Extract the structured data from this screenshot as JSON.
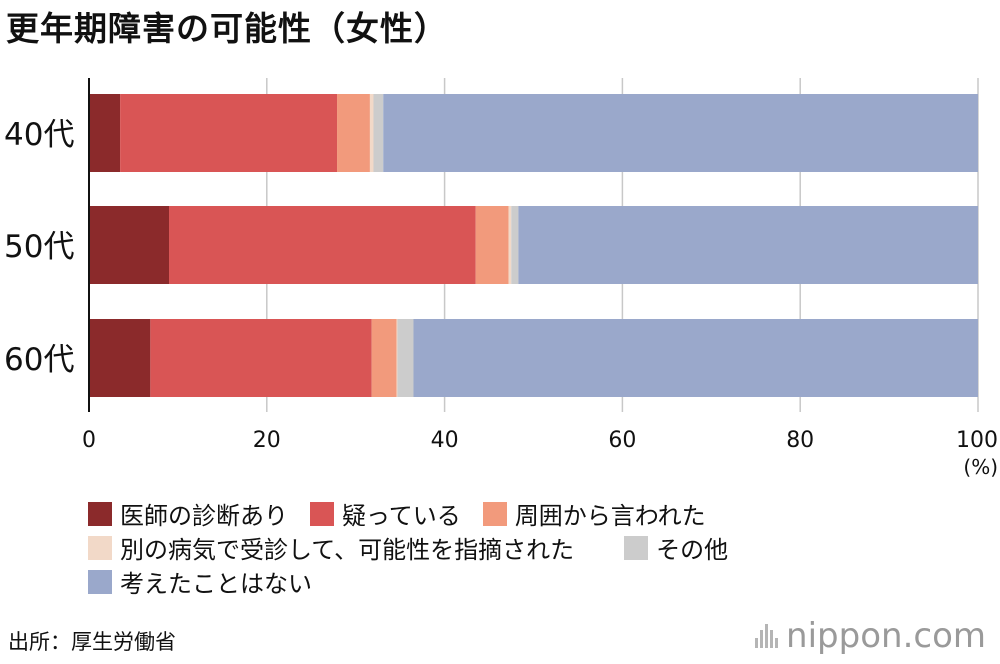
{
  "title": "更年期障害の可能性（女性）",
  "colors": {
    "doctor": "#8b2a2b",
    "suspect": "#d95555",
    "told": "#f29a7c",
    "other_disease": "#f2d9c8",
    "other": "#cccccc",
    "never": "#9aa8cb",
    "grid": "#c8c8c8",
    "axis": "#111111"
  },
  "chart_data": {
    "type": "bar",
    "orientation": "horizontal",
    "stacked": true,
    "categories": [
      "40代",
      "50代",
      "60代"
    ],
    "series": [
      {
        "name": "医師の診断あり",
        "values": [
          3.5,
          9.0,
          6.9
        ]
      },
      {
        "name": "疑っている",
        "values": [
          24.4,
          34.5,
          24.9
        ]
      },
      {
        "name": "周囲から言われた",
        "values": [
          3.7,
          3.7,
          2.8
        ]
      },
      {
        "name": "別の病気で受診して、可能性を指摘された",
        "values": [
          0.4,
          0.3,
          0.1
        ]
      },
      {
        "name": "その他",
        "values": [
          1.1,
          0.8,
          1.8
        ]
      },
      {
        "name": "考えたことはない",
        "values": [
          66.9,
          51.7,
          63.5
        ]
      }
    ],
    "xlim": [
      0,
      100
    ],
    "xticks": [
      0,
      20,
      40,
      60,
      80,
      100
    ],
    "unit": "(%)",
    "grid": true
  },
  "legend": {
    "rows": [
      [
        {
          "label": "医師の診断あり",
          "color": "#8b2a2b"
        },
        {
          "label": "疑っている",
          "color": "#d95555"
        },
        {
          "label": "周囲から言われた",
          "color": "#f29a7c"
        }
      ],
      [
        {
          "label": "別の病気で受診して、可能性を指摘された",
          "color": "#f2d9c8"
        },
        {
          "label": "その他",
          "color": "#cccccc"
        }
      ],
      [
        {
          "label": "考えたことはない",
          "color": "#9aa8cb"
        }
      ]
    ]
  },
  "source": "出所：厚生労働省",
  "brand": {
    "name": "nippon",
    "suffix": ".com"
  }
}
